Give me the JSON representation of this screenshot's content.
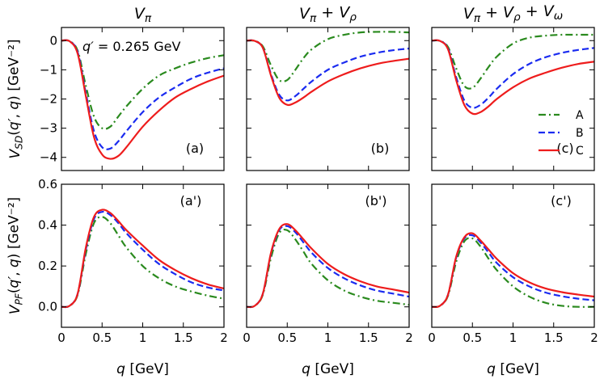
{
  "chart_data": [
    {
      "type": "line",
      "row": 0,
      "col": 0,
      "title": "V_π",
      "panel_label": "(a)",
      "annotation": "q′ = 0.265 GeV",
      "xlabel": "",
      "ylabel": "V_SD(q′, q) [GeV⁻²]",
      "xlim": [
        0,
        2
      ],
      "ylim": [
        -4.45,
        0.45
      ],
      "xticks": [
        0,
        0.5,
        1,
        1.5,
        2
      ],
      "xtick_labels": [
        "",
        "",
        "",
        "",
        ""
      ],
      "yticks": [
        0,
        -1,
        -2,
        -3,
        -4
      ],
      "ytick_labels": [
        "0",
        "−1",
        "−2",
        "−3",
        "−4"
      ],
      "series": [
        {
          "name": "A",
          "color": "#2a8a1e",
          "dash": "9,4,2,4",
          "x": [
            0,
            0.1,
            0.2,
            0.3,
            0.4,
            0.5,
            0.6,
            0.7,
            0.8,
            1.0,
            1.2,
            1.4,
            1.6,
            1.8,
            2.0
          ],
          "y": [
            0,
            -0.02,
            -0.35,
            -1.55,
            -2.6,
            -3.0,
            -2.95,
            -2.6,
            -2.25,
            -1.65,
            -1.2,
            -0.95,
            -0.75,
            -0.6,
            -0.5
          ]
        },
        {
          "name": "B",
          "color": "#1a2bf0",
          "dash": "8,4",
          "x": [
            0,
            0.1,
            0.2,
            0.3,
            0.4,
            0.5,
            0.6,
            0.7,
            0.8,
            1.0,
            1.2,
            1.4,
            1.6,
            1.8,
            2.0
          ],
          "y": [
            0,
            -0.02,
            -0.4,
            -1.8,
            -3.1,
            -3.65,
            -3.7,
            -3.45,
            -3.1,
            -2.45,
            -1.95,
            -1.6,
            -1.3,
            -1.1,
            -0.95
          ]
        },
        {
          "name": "C",
          "color": "#ee1c1c",
          "dash": "",
          "x": [
            0,
            0.1,
            0.2,
            0.3,
            0.4,
            0.5,
            0.6,
            0.7,
            0.8,
            1.0,
            1.2,
            1.4,
            1.6,
            1.8,
            2.0
          ],
          "y": [
            0,
            -0.02,
            -0.45,
            -1.9,
            -3.3,
            -3.9,
            -4.05,
            -3.95,
            -3.65,
            -2.95,
            -2.4,
            -1.95,
            -1.65,
            -1.4,
            -1.2
          ]
        }
      ]
    },
    {
      "type": "line",
      "row": 0,
      "col": 1,
      "title": "V_π + V_ρ",
      "panel_label": "(b)",
      "xlabel": "",
      "ylabel": "",
      "xlim": [
        0,
        2
      ],
      "ylim": [
        -4.45,
        0.45
      ],
      "xticks": [
        0,
        0.5,
        1,
        1.5,
        2
      ],
      "xtick_labels": [
        "",
        "",
        "",
        "",
        ""
      ],
      "yticks": [
        0,
        -1,
        -2,
        -3,
        -4
      ],
      "ytick_labels": [
        "",
        "",
        "",
        "",
        ""
      ],
      "series": [
        {
          "name": "A",
          "color": "#2a8a1e",
          "dash": "9,4,2,4",
          "x": [
            0,
            0.1,
            0.2,
            0.3,
            0.4,
            0.5,
            0.6,
            0.7,
            0.8,
            1.0,
            1.2,
            1.4,
            1.6,
            1.8,
            2.0
          ],
          "y": [
            0,
            -0.01,
            -0.2,
            -0.85,
            -1.35,
            -1.35,
            -1.0,
            -0.6,
            -0.3,
            0.05,
            0.2,
            0.28,
            0.3,
            0.3,
            0.28
          ]
        },
        {
          "name": "B",
          "color": "#1a2bf0",
          "dash": "8,4",
          "x": [
            0,
            0.1,
            0.2,
            0.3,
            0.4,
            0.5,
            0.6,
            0.7,
            0.8,
            1.0,
            1.2,
            1.4,
            1.6,
            1.8,
            2.0
          ],
          "y": [
            0,
            -0.01,
            -0.25,
            -1.15,
            -1.85,
            -2.05,
            -1.9,
            -1.65,
            -1.4,
            -1.0,
            -0.75,
            -0.55,
            -0.42,
            -0.33,
            -0.27
          ]
        },
        {
          "name": "C",
          "color": "#ee1c1c",
          "dash": "",
          "x": [
            0,
            0.1,
            0.2,
            0.3,
            0.4,
            0.5,
            0.6,
            0.7,
            0.8,
            1.0,
            1.2,
            1.4,
            1.6,
            1.8,
            2.0
          ],
          "y": [
            0,
            -0.01,
            -0.25,
            -1.2,
            -1.95,
            -2.2,
            -2.12,
            -1.95,
            -1.75,
            -1.4,
            -1.15,
            -0.95,
            -0.8,
            -0.7,
            -0.62
          ]
        }
      ]
    },
    {
      "type": "line",
      "row": 0,
      "col": 2,
      "title": "V_π + V_ρ + V_ω",
      "panel_label": "(c)",
      "xlabel": "",
      "ylabel": "",
      "xlim": [
        0,
        2
      ],
      "ylim": [
        -4.45,
        0.45
      ],
      "xticks": [
        0,
        0.5,
        1,
        1.5,
        2
      ],
      "xtick_labels": [
        "",
        "",
        "",
        "",
        ""
      ],
      "yticks": [
        0,
        -1,
        -2,
        -3,
        -4
      ],
      "ytick_labels": [
        "",
        "",
        "",
        "",
        ""
      ],
      "legend": {
        "position": "center-right",
        "entries": [
          "A",
          "B",
          "C"
        ]
      },
      "series": [
        {
          "name": "A",
          "color": "#2a8a1e",
          "dash": "9,4,2,4",
          "x": [
            0,
            0.1,
            0.2,
            0.3,
            0.4,
            0.5,
            0.6,
            0.7,
            0.8,
            1.0,
            1.2,
            1.4,
            1.6,
            1.8,
            2.0
          ],
          "y": [
            0,
            -0.01,
            -0.22,
            -0.95,
            -1.55,
            -1.62,
            -1.3,
            -0.9,
            -0.55,
            -0.1,
            0.1,
            0.17,
            0.2,
            0.2,
            0.2
          ]
        },
        {
          "name": "B",
          "color": "#1a2bf0",
          "dash": "8,4",
          "x": [
            0,
            0.1,
            0.2,
            0.3,
            0.4,
            0.5,
            0.6,
            0.7,
            0.8,
            1.0,
            1.2,
            1.4,
            1.6,
            1.8,
            2.0
          ],
          "y": [
            0,
            -0.01,
            -0.27,
            -1.25,
            -2.05,
            -2.3,
            -2.2,
            -1.95,
            -1.65,
            -1.15,
            -0.8,
            -0.57,
            -0.42,
            -0.32,
            -0.25
          ]
        },
        {
          "name": "C",
          "color": "#ee1c1c",
          "dash": "",
          "x": [
            0,
            0.1,
            0.2,
            0.3,
            0.4,
            0.5,
            0.6,
            0.7,
            0.8,
            1.0,
            1.2,
            1.4,
            1.6,
            1.8,
            2.0
          ],
          "y": [
            0,
            -0.01,
            -0.3,
            -1.35,
            -2.2,
            -2.5,
            -2.45,
            -2.25,
            -2.0,
            -1.6,
            -1.3,
            -1.1,
            -0.93,
            -0.8,
            -0.72
          ]
        }
      ]
    },
    {
      "type": "line",
      "row": 1,
      "col": 0,
      "title": "",
      "panel_label": "(a')",
      "xlabel": "q [GeV]",
      "ylabel": "V_PF(q′, q) [GeV⁻²]",
      "xlim": [
        0,
        2
      ],
      "ylim": [
        -0.1,
        0.6
      ],
      "xticks": [
        0,
        0.5,
        1,
        1.5,
        2
      ],
      "xtick_labels": [
        "0",
        "0.5",
        "1",
        "1.5",
        "2"
      ],
      "yticks": [
        0,
        0.2,
        0.4,
        0.6
      ],
      "ytick_labels": [
        "0.0",
        "0.2",
        "0.4",
        "0.6"
      ],
      "series": [
        {
          "name": "A",
          "color": "#2a8a1e",
          "dash": "9,4,2,4",
          "x": [
            0,
            0.1,
            0.2,
            0.3,
            0.4,
            0.5,
            0.6,
            0.7,
            0.8,
            1.0,
            1.2,
            1.4,
            1.6,
            1.8,
            2.0
          ],
          "y": [
            0,
            0.005,
            0.06,
            0.26,
            0.41,
            0.44,
            0.41,
            0.35,
            0.29,
            0.2,
            0.14,
            0.1,
            0.075,
            0.055,
            0.04
          ]
        },
        {
          "name": "B",
          "color": "#1a2bf0",
          "dash": "8,4",
          "x": [
            0,
            0.1,
            0.2,
            0.3,
            0.4,
            0.5,
            0.6,
            0.7,
            0.8,
            1.0,
            1.2,
            1.4,
            1.6,
            1.8,
            2.0
          ],
          "y": [
            0,
            0.005,
            0.065,
            0.28,
            0.43,
            0.465,
            0.45,
            0.41,
            0.36,
            0.28,
            0.21,
            0.16,
            0.12,
            0.095,
            0.08
          ]
        },
        {
          "name": "C",
          "color": "#ee1c1c",
          "dash": "",
          "x": [
            0,
            0.1,
            0.2,
            0.3,
            0.4,
            0.5,
            0.6,
            0.7,
            0.8,
            1.0,
            1.2,
            1.4,
            1.6,
            1.8,
            2.0
          ],
          "y": [
            0,
            0.005,
            0.065,
            0.29,
            0.44,
            0.475,
            0.46,
            0.42,
            0.375,
            0.3,
            0.23,
            0.18,
            0.14,
            0.11,
            0.09
          ]
        }
      ]
    },
    {
      "type": "line",
      "row": 1,
      "col": 1,
      "title": "",
      "panel_label": "(b')",
      "xlabel": "q [GeV]",
      "ylabel": "",
      "xlim": [
        0,
        2
      ],
      "ylim": [
        -0.1,
        0.6
      ],
      "xticks": [
        0,
        0.5,
        1,
        1.5,
        2
      ],
      "xtick_labels": [
        "0",
        "0.5",
        "1",
        "1.5",
        "2"
      ],
      "yticks": [
        0,
        0.2,
        0.4,
        0.6
      ],
      "ytick_labels": [
        "",
        "",
        "",
        ""
      ],
      "series": [
        {
          "name": "A",
          "color": "#2a8a1e",
          "dash": "9,4,2,4",
          "x": [
            0,
            0.1,
            0.2,
            0.3,
            0.4,
            0.5,
            0.6,
            0.7,
            0.8,
            1.0,
            1.2,
            1.4,
            1.6,
            1.8,
            2.0
          ],
          "y": [
            0,
            0.005,
            0.06,
            0.24,
            0.36,
            0.375,
            0.33,
            0.27,
            0.21,
            0.13,
            0.08,
            0.05,
            0.03,
            0.02,
            0.01
          ]
        },
        {
          "name": "B",
          "color": "#1a2bf0",
          "dash": "8,4",
          "x": [
            0,
            0.1,
            0.2,
            0.3,
            0.4,
            0.5,
            0.6,
            0.7,
            0.8,
            1.0,
            1.2,
            1.4,
            1.6,
            1.8,
            2.0
          ],
          "y": [
            0,
            0.005,
            0.065,
            0.26,
            0.375,
            0.395,
            0.365,
            0.315,
            0.265,
            0.19,
            0.14,
            0.105,
            0.08,
            0.065,
            0.05
          ]
        },
        {
          "name": "C",
          "color": "#ee1c1c",
          "dash": "",
          "x": [
            0,
            0.1,
            0.2,
            0.3,
            0.4,
            0.5,
            0.6,
            0.7,
            0.8,
            1.0,
            1.2,
            1.4,
            1.6,
            1.8,
            2.0
          ],
          "y": [
            0,
            0.005,
            0.065,
            0.265,
            0.38,
            0.405,
            0.375,
            0.33,
            0.285,
            0.21,
            0.16,
            0.125,
            0.1,
            0.085,
            0.07
          ]
        }
      ]
    },
    {
      "type": "line",
      "row": 1,
      "col": 2,
      "title": "",
      "panel_label": "(c')",
      "xlabel": "q [GeV]",
      "ylabel": "",
      "xlim": [
        0,
        2
      ],
      "ylim": [
        -0.1,
        0.6
      ],
      "xticks": [
        0,
        0.5,
        1,
        1.5,
        2
      ],
      "xtick_labels": [
        "0",
        "0.5",
        "1",
        "1.5",
        "2"
      ],
      "yticks": [
        0,
        0.2,
        0.4,
        0.6
      ],
      "ytick_labels": [
        "",
        "",
        "",
        ""
      ],
      "series": [
        {
          "name": "A",
          "color": "#2a8a1e",
          "dash": "9,4,2,4",
          "x": [
            0,
            0.1,
            0.2,
            0.3,
            0.4,
            0.5,
            0.6,
            0.7,
            0.8,
            1.0,
            1.2,
            1.4,
            1.6,
            1.8,
            2.0
          ],
          "y": [
            0,
            0.005,
            0.055,
            0.22,
            0.32,
            0.335,
            0.295,
            0.235,
            0.18,
            0.1,
            0.05,
            0.02,
            0.005,
            0.0,
            0.0
          ]
        },
        {
          "name": "B",
          "color": "#1a2bf0",
          "dash": "8,4",
          "x": [
            0,
            0.1,
            0.2,
            0.3,
            0.4,
            0.5,
            0.6,
            0.7,
            0.8,
            1.0,
            1.2,
            1.4,
            1.6,
            1.8,
            2.0
          ],
          "y": [
            0,
            0.005,
            0.06,
            0.24,
            0.335,
            0.35,
            0.315,
            0.265,
            0.215,
            0.145,
            0.1,
            0.07,
            0.052,
            0.04,
            0.032
          ]
        },
        {
          "name": "C",
          "color": "#ee1c1c",
          "dash": "",
          "x": [
            0,
            0.1,
            0.2,
            0.3,
            0.4,
            0.5,
            0.6,
            0.7,
            0.8,
            1.0,
            1.2,
            1.4,
            1.6,
            1.8,
            2.0
          ],
          "y": [
            0,
            0.005,
            0.06,
            0.245,
            0.34,
            0.36,
            0.325,
            0.28,
            0.235,
            0.165,
            0.12,
            0.09,
            0.072,
            0.06,
            0.05
          ]
        }
      ]
    }
  ]
}
